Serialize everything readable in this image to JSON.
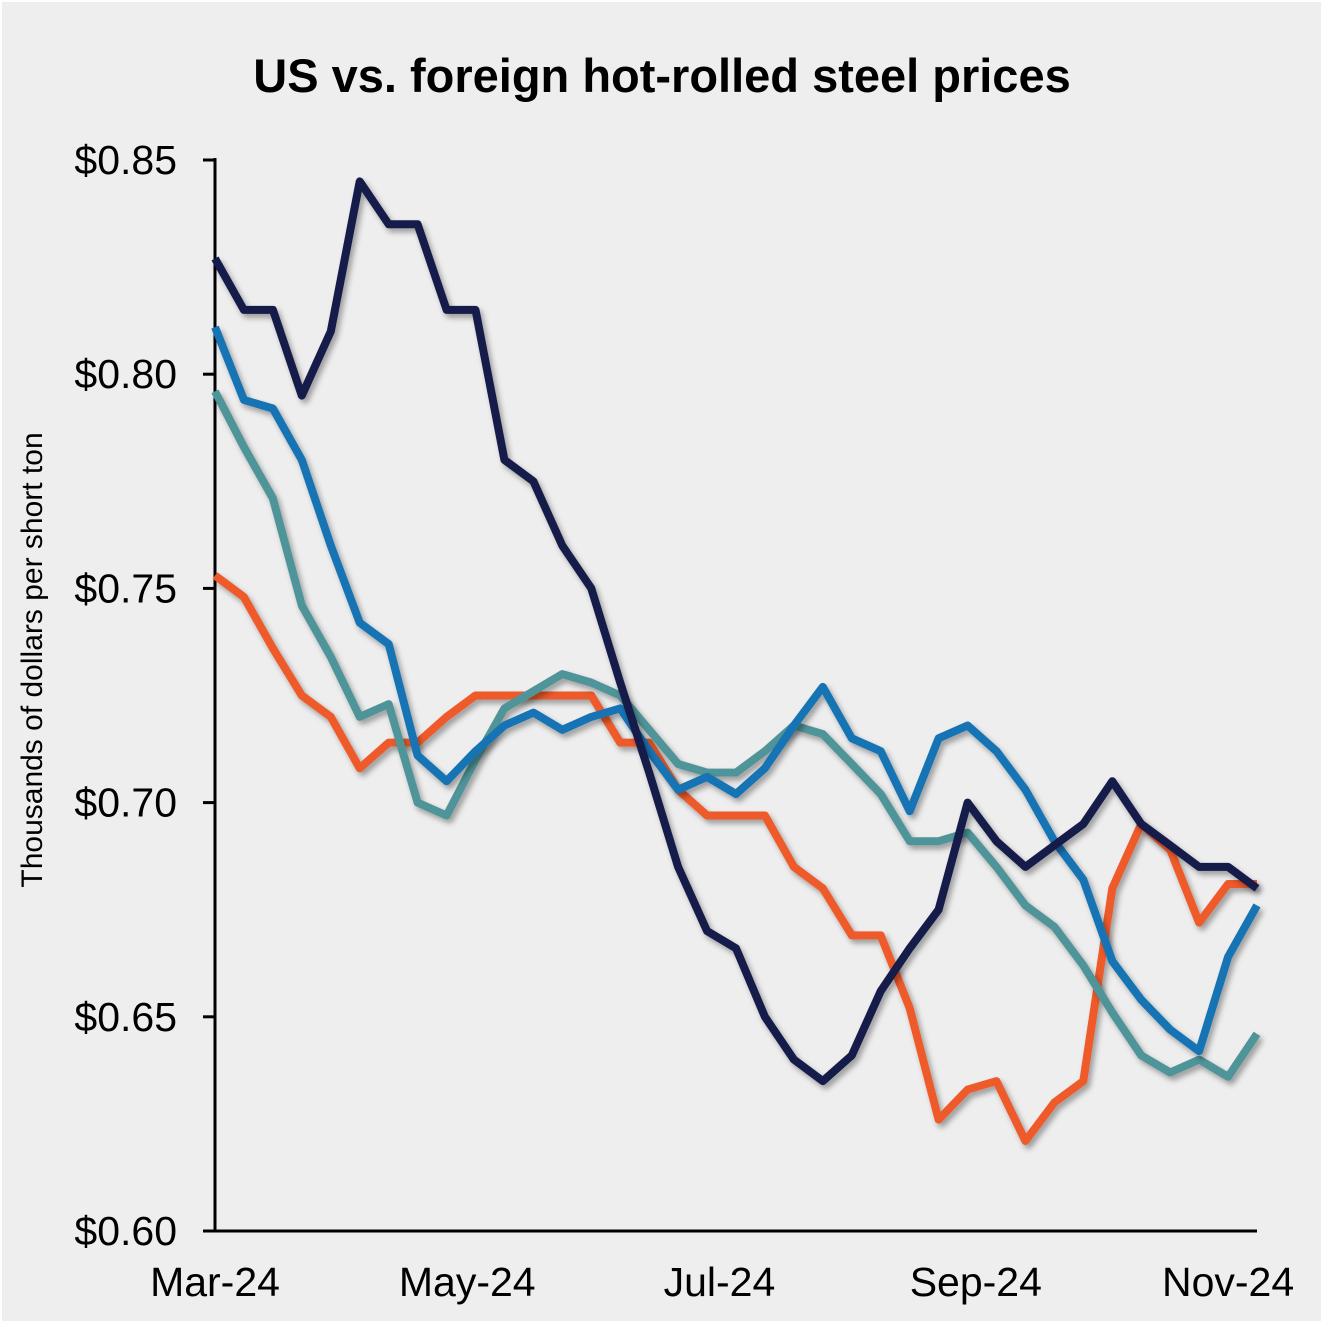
{
  "chart_data": {
    "type": "line",
    "title": "US vs. foreign hot-rolled steel prices",
    "xlabel": "",
    "ylabel": "Thousands of dollars per short ton",
    "ylim": [
      0.6,
      0.85
    ],
    "xlim": [
      "2024-03-01",
      "2024-11-08"
    ],
    "y_ticks": [
      0.6,
      0.65,
      0.7,
      0.75,
      0.8,
      0.85
    ],
    "y_tick_labels": [
      "$0.60",
      "$0.65",
      "$0.70",
      "$0.75",
      "$0.80",
      "$0.85"
    ],
    "x_ticks": [
      "2024-03-01",
      "2024-05-01",
      "2024-07-01",
      "2024-09-01",
      "2024-11-01"
    ],
    "x_tick_labels": [
      "Mar-24",
      "May-24",
      "Jul-24",
      "Sep-24",
      "Nov-24"
    ],
    "grid": false,
    "legend": "none",
    "background": "#EEEEEE",
    "x": [
      "2024-03-01",
      "2024-03-08",
      "2024-03-15",
      "2024-03-22",
      "2024-03-29",
      "2024-04-05",
      "2024-04-12",
      "2024-04-19",
      "2024-04-26",
      "2024-05-03",
      "2024-05-10",
      "2024-05-17",
      "2024-05-24",
      "2024-05-31",
      "2024-06-07",
      "2024-06-14",
      "2024-06-21",
      "2024-06-28",
      "2024-07-05",
      "2024-07-12",
      "2024-07-19",
      "2024-07-26",
      "2024-08-02",
      "2024-08-09",
      "2024-08-16",
      "2024-08-23",
      "2024-08-30",
      "2024-09-06",
      "2024-09-13",
      "2024-09-20",
      "2024-09-27",
      "2024-10-04",
      "2024-10-11",
      "2024-10-18",
      "2024-10-25",
      "2024-11-01",
      "2024-11-08"
    ],
    "series": [
      {
        "color": "#EE5A2C",
        "values": [
          0.753,
          0.748,
          0.736,
          0.725,
          0.72,
          0.708,
          0.714,
          0.714,
          0.72,
          0.725,
          0.725,
          0.725,
          0.725,
          0.725,
          0.714,
          0.714,
          0.703,
          0.697,
          0.697,
          0.697,
          0.685,
          0.68,
          0.669,
          0.669,
          0.652,
          0.626,
          0.633,
          0.635,
          0.621,
          0.63,
          0.635,
          0.68,
          0.695,
          0.689,
          0.672,
          0.681,
          0.681
        ]
      },
      {
        "color": "#4F9499",
        "values": [
          0.796,
          0.783,
          0.771,
          0.746,
          0.734,
          0.72,
          0.723,
          0.7,
          0.697,
          0.71,
          0.722,
          0.726,
          0.73,
          0.728,
          0.725,
          0.717,
          0.709,
          0.707,
          0.707,
          0.712,
          0.718,
          0.716,
          0.709,
          0.702,
          0.691,
          0.691,
          0.693,
          0.685,
          0.676,
          0.671,
          0.662,
          0.651,
          0.641,
          0.637,
          0.64,
          0.636,
          0.646
        ]
      },
      {
        "color": "#1273B4",
        "values": [
          0.811,
          0.794,
          0.792,
          0.78,
          0.76,
          0.742,
          0.737,
          0.711,
          0.705,
          0.712,
          0.718,
          0.721,
          0.717,
          0.72,
          0.722,
          0.712,
          0.703,
          0.706,
          0.702,
          0.708,
          0.718,
          0.727,
          0.715,
          0.712,
          0.698,
          0.715,
          0.718,
          0.712,
          0.703,
          0.691,
          0.682,
          0.663,
          0.654,
          0.647,
          0.642,
          0.664,
          0.676
        ]
      },
      {
        "color": "#141A4A",
        "values": [
          0.827,
          0.815,
          0.815,
          0.795,
          0.81,
          0.845,
          0.835,
          0.835,
          0.815,
          0.815,
          0.78,
          0.775,
          0.76,
          0.75,
          0.728,
          0.707,
          0.685,
          0.67,
          0.666,
          0.65,
          0.64,
          0.635,
          0.641,
          0.656,
          0.666,
          0.675,
          0.7,
          0.691,
          0.685,
          0.69,
          0.695,
          0.705,
          0.695,
          0.69,
          0.685,
          0.685,
          0.68
        ]
      }
    ]
  }
}
